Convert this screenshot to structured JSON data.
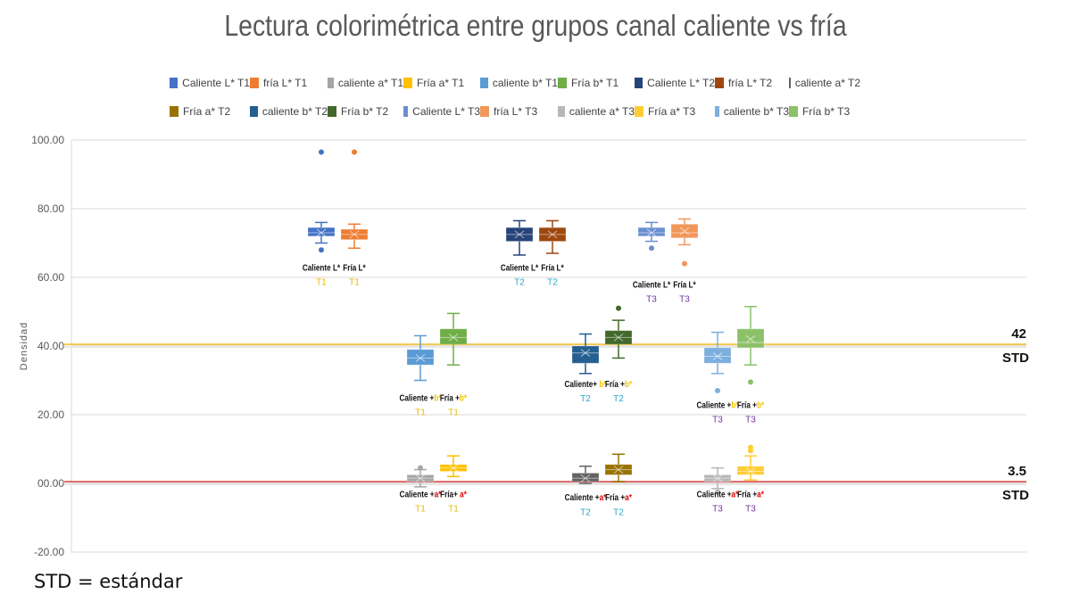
{
  "title": "Lectura colorimétrica entre grupos canal caliente vs fría",
  "footnote": "STD = estándar",
  "legend": [
    {
      "label": "Caliente L* T1",
      "color": "#4472c4"
    },
    {
      "label": "fría L* T1",
      "color": "#ed7d31"
    },
    {
      "label": "caliente a* T1",
      "color": "#a5a5a5"
    },
    {
      "label": "Fría a* T1",
      "color": "#ffc000"
    },
    {
      "label": "caliente b* T1",
      "color": "#5b9bd5"
    },
    {
      "label": "Fría b* T1",
      "color": "#70ad47"
    },
    {
      "label": "Caliente L* T2",
      "color": "#264478"
    },
    {
      "label": "fría L* T2",
      "color": "#9e480e"
    },
    {
      "label": "caliente a* T2",
      "color": "#636363"
    },
    {
      "label": "Fría a* T2",
      "color": "#997300"
    },
    {
      "label": "caliente b* T2",
      "color": "#255e91"
    },
    {
      "label": "Fría b* T2",
      "color": "#43682b"
    },
    {
      "label": "Caliente L* T3",
      "color": "#698ed0"
    },
    {
      "label": "fría L* T3",
      "color": "#f1975a"
    },
    {
      "label": "caliente a* T3",
      "color": "#b7b7b7"
    },
    {
      "label": "Fría a* T3",
      "color": "#ffcd33"
    },
    {
      "label": "caliente b* T3",
      "color": "#7cafdd"
    },
    {
      "label": "Fría b* T3",
      "color": "#8cc168"
    }
  ],
  "chart_data": {
    "type": "boxplot",
    "title": "Lectura colorimétrica entre grupos canal caliente vs fría",
    "ylabel": "Densidad",
    "xlabel": "",
    "ylim": [
      -20,
      100
    ],
    "yticks": [
      "-20.00",
      "00.00",
      "20.00",
      "40.00",
      "60.00",
      "80.00",
      "100.00"
    ],
    "grid": true,
    "legend_position": "top",
    "reference_lines": [
      {
        "value": 40.5,
        "color": "#f2c94c",
        "label_top": "42",
        "label_bottom": "STD"
      },
      {
        "value": 0.5,
        "color": "#e06666",
        "label_top": "3.5",
        "label_bottom": "STD"
      }
    ],
    "series": [
      {
        "name": "Caliente L* T1",
        "pos": 1,
        "color": "#4472c4",
        "min": 70,
        "q1": 72,
        "median": 73,
        "q3": 74.5,
        "max": 76,
        "mean": 73,
        "outliers": [
          96.5,
          68
        ]
      },
      {
        "name": "fría L* T1",
        "pos": 2,
        "color": "#ed7d31",
        "min": 68.5,
        "q1": 71,
        "median": 72.5,
        "q3": 74,
        "max": 75.5,
        "mean": 72.5,
        "outliers": [
          96.5
        ]
      },
      {
        "name": "Caliente L* T2",
        "pos": 7,
        "color": "#264478",
        "min": 66.5,
        "q1": 70.5,
        "median": 72.5,
        "q3": 74.5,
        "max": 76.5,
        "mean": 72.5,
        "outliers": []
      },
      {
        "name": "fría L* T2",
        "pos": 8,
        "color": "#9e480e",
        "min": 67,
        "q1": 70.5,
        "median": 72.5,
        "q3": 74.5,
        "max": 76.5,
        "mean": 72.5,
        "outliers": []
      },
      {
        "name": "Caliente L* T3",
        "pos": 11,
        "color": "#698ed0",
        "min": 70.5,
        "q1": 72,
        "median": 73,
        "q3": 74.5,
        "max": 76,
        "mean": 73,
        "outliers": [
          68.5
        ]
      },
      {
        "name": "fría L* T3",
        "pos": 12,
        "color": "#f1975a",
        "min": 69.5,
        "q1": 71.5,
        "median": 73,
        "q3": 75.5,
        "max": 77,
        "mean": 73.5,
        "outliers": [
          64
        ]
      },
      {
        "name": "caliente b* T1",
        "pos": 4,
        "color": "#5b9bd5",
        "min": 30,
        "q1": 34.5,
        "median": 36.5,
        "q3": 39,
        "max": 43,
        "mean": 36.5,
        "outliers": []
      },
      {
        "name": "Fría b* T1",
        "pos": 5,
        "color": "#70ad47",
        "min": 34.5,
        "q1": 40.5,
        "median": 42.5,
        "q3": 45,
        "max": 49.5,
        "mean": 42.5,
        "outliers": []
      },
      {
        "name": "caliente b* T2",
        "pos": 9,
        "color": "#255e91",
        "min": 32,
        "q1": 35,
        "median": 38,
        "q3": 40,
        "max": 43.5,
        "mean": 38,
        "outliers": []
      },
      {
        "name": "Fría b* T2",
        "pos": 10,
        "color": "#43682b",
        "min": 36.5,
        "q1": 40.5,
        "median": 42.5,
        "q3": 44.5,
        "max": 47.5,
        "mean": 42.5,
        "outliers": [
          51
        ]
      },
      {
        "name": "caliente b* T3",
        "pos": 13,
        "color": "#7cafdd",
        "min": 32,
        "q1": 35,
        "median": 37,
        "q3": 39.5,
        "max": 44,
        "mean": 37,
        "outliers": [
          27
        ]
      },
      {
        "name": "Fría b* T3",
        "pos": 14,
        "color": "#8cc168",
        "min": 34.5,
        "q1": 39.5,
        "median": 41,
        "q3": 45,
        "max": 51.5,
        "mean": 42,
        "outliers": [
          29.5
        ]
      },
      {
        "name": "caliente a* T1",
        "pos": 4,
        "color": "#a5a5a5",
        "min": -1,
        "q1": 0.5,
        "median": 1.5,
        "q3": 2.5,
        "max": 4,
        "mean": 1.5,
        "outliers": [
          4.5
        ]
      },
      {
        "name": "Fría a* T1",
        "pos": 5,
        "color": "#ffc000",
        "min": 2,
        "q1": 3.5,
        "median": 4.5,
        "q3": 5.5,
        "max": 8,
        "mean": 4.5,
        "outliers": []
      },
      {
        "name": "caliente a* T2",
        "pos": 9,
        "color": "#636363",
        "min": 0,
        "q1": 0.5,
        "median": 1.5,
        "q3": 3,
        "max": 5,
        "mean": 1.5,
        "outliers": []
      },
      {
        "name": "Fría a* T2",
        "pos": 10,
        "color": "#997300",
        "min": 0.5,
        "q1": 2.5,
        "median": 4,
        "q3": 5.5,
        "max": 8.5,
        "mean": 4,
        "outliers": []
      },
      {
        "name": "caliente a* T3",
        "pos": 13,
        "color": "#b7b7b7",
        "min": -1.5,
        "q1": 0.5,
        "median": 1.5,
        "q3": 2.5,
        "max": 4.5,
        "mean": 1.5,
        "outliers": [
          -2.5
        ]
      },
      {
        "name": "Fría a* T3",
        "pos": 14,
        "color": "#ffcd33",
        "min": 1,
        "q1": 2.5,
        "median": 3.5,
        "q3": 5,
        "max": 8,
        "mean": 3.5,
        "outliers": [
          9.5,
          10.5
        ]
      }
    ],
    "annotations": [
      {
        "text": "Caliente L*",
        "sub": "T1",
        "sub_color": "#e6b800",
        "x": 1,
        "y": 62
      },
      {
        "text": "Fría L*",
        "sub": "T1",
        "sub_color": "#e6b800",
        "x": 2,
        "y": 62
      },
      {
        "text": "Caliente L*",
        "sub": "T2",
        "sub_color": "#2aa6c8",
        "x": 7,
        "y": 62
      },
      {
        "text": "Fría L*",
        "sub": "T2",
        "sub_color": "#2aa6c8",
        "x": 8,
        "y": 62
      },
      {
        "text": "Caliente L*",
        "sub": "T3",
        "sub_color": "#7030a0",
        "x": 11,
        "y": 57
      },
      {
        "text": "Fría L*",
        "sub": "T3",
        "sub_color": "#7030a0",
        "x": 12,
        "y": 57
      },
      {
        "text": "Caliente +b*",
        "sub": "T1",
        "sub_color": "#e6b800",
        "x": 4,
        "y": 24
      },
      {
        "text": "Fría +b*",
        "sub": "T1",
        "sub_color": "#e6b800",
        "x": 5,
        "y": 24
      },
      {
        "text": "Caliente+ b*",
        "sub": "T2",
        "sub_color": "#2aa6c8",
        "x": 9,
        "y": 28
      },
      {
        "text": "Fría +b*",
        "sub": "T2",
        "sub_color": "#2aa6c8",
        "x": 10,
        "y": 28
      },
      {
        "text": "Caliente +b*",
        "sub": "T3",
        "sub_color": "#7030a0",
        "x": 13,
        "y": 22
      },
      {
        "text": "Fría +b*",
        "sub": "T3",
        "sub_color": "#7030a0",
        "x": 14,
        "y": 22
      },
      {
        "text": "Caliente +a*",
        "sub": "T1",
        "sub_color": "#e6b800",
        "x": 4,
        "y": -4
      },
      {
        "text": "Fría+ a*",
        "sub": "T1",
        "sub_color": "#e6b800",
        "x": 5,
        "y": -4
      },
      {
        "text": "Caliente +a*",
        "sub": "T2",
        "sub_color": "#2aa6c8",
        "x": 9,
        "y": -5
      },
      {
        "text": "Fría +a*",
        "sub": "T2",
        "sub_color": "#2aa6c8",
        "x": 10,
        "y": -5
      },
      {
        "text": "Caliente +a*",
        "sub": "T3",
        "sub_color": "#7030a0",
        "x": 13,
        "y": -4
      },
      {
        "text": "Fría +a*",
        "sub": "T3",
        "sub_color": "#7030a0",
        "x": 14,
        "y": -4
      }
    ]
  }
}
